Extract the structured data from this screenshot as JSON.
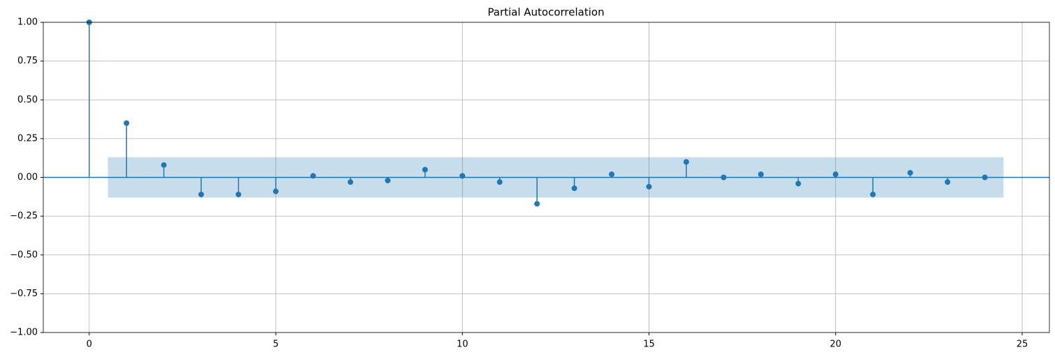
{
  "chart_data": {
    "type": "stem",
    "title": "Partial Autocorrelation",
    "x": [
      0,
      1,
      2,
      3,
      4,
      5,
      6,
      7,
      8,
      9,
      10,
      11,
      12,
      13,
      14,
      15,
      16,
      17,
      18,
      19,
      20,
      21,
      22,
      23,
      24
    ],
    "values": [
      1.0,
      0.35,
      0.08,
      -0.11,
      -0.11,
      -0.09,
      0.01,
      -0.03,
      -0.02,
      0.05,
      0.01,
      -0.03,
      -0.17,
      -0.07,
      0.02,
      -0.06,
      0.1,
      0.0,
      0.02,
      -0.04,
      0.02,
      -0.11,
      0.03,
      -0.03,
      0.0
    ],
    "color": "#1f77b4",
    "confidence_band": {
      "x": [
        0.5,
        24.5
      ],
      "lower": -0.13,
      "upper": 0.13,
      "color": "#1f77b4"
    },
    "xlim": [
      -1.23,
      25.73
    ],
    "xticks": [
      0,
      5,
      10,
      15,
      20,
      25
    ],
    "ylim": [
      -1,
      1
    ],
    "yticks": [
      {
        "value": -1,
        "label": "−1.00"
      },
      {
        "value": -0.75,
        "label": "−0.75"
      },
      {
        "value": -0.5,
        "label": "−0.50"
      },
      {
        "value": -0.25,
        "label": "−0.25"
      },
      {
        "value": 0,
        "label": "0.00"
      },
      {
        "value": 0.25,
        "label": "0.25"
      },
      {
        "value": 0.5,
        "label": "0.50"
      },
      {
        "value": 0.75,
        "label": "0.75"
      },
      {
        "value": 1,
        "label": "1.00"
      }
    ],
    "grid": true
  }
}
